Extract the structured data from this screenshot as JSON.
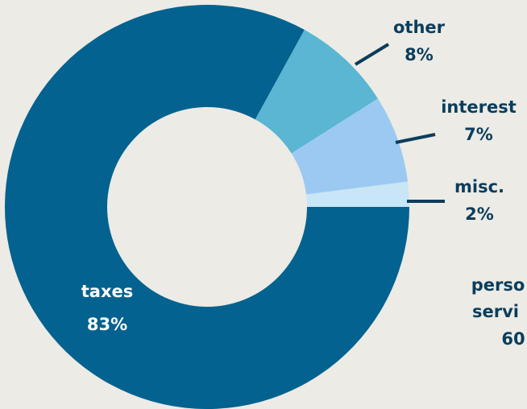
{
  "chart_data": {
    "type": "pie",
    "donut": true,
    "title": "",
    "slices": [
      {
        "label": "taxes",
        "value": 83,
        "value_label": "83%",
        "color": "#03628f",
        "label_color": "#ffffff"
      },
      {
        "label": "other",
        "value": 8,
        "value_label": "8%",
        "color": "#5ab6d2",
        "label_color": "#0b3d5c"
      },
      {
        "label": "interest",
        "value": 7,
        "value_label": "7%",
        "color": "#9bc9f2",
        "label_color": "#0b3d5c"
      },
      {
        "label": "misc.",
        "value": 2,
        "value_label": "2%",
        "color": "#c8e6f5",
        "label_color": "#0b3d5c"
      }
    ],
    "partial_label": {
      "lines": [
        "perso",
        "servi",
        "60"
      ],
      "color": "#0b3d5c"
    }
  },
  "colors": {
    "background": "#ecebe5",
    "leader": "#0b3d5c"
  }
}
